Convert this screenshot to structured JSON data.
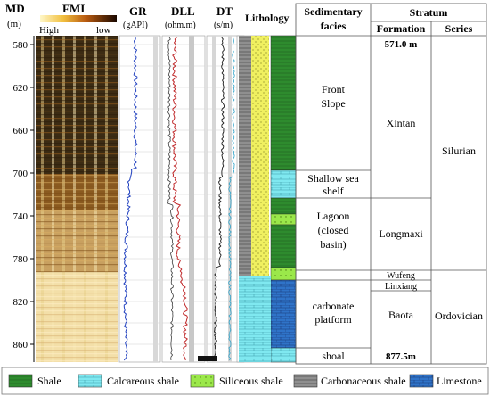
{
  "header": {
    "md": "MD",
    "md_unit": "(m)",
    "fmi": "FMI",
    "fmi_high": "High",
    "fmi_low": "low",
    "gr": "GR",
    "gr_unit": "(gAPI)",
    "dll": "DLL",
    "dll_unit": "(ohm.m)",
    "dt": "DT",
    "dt_unit": "(s/m)",
    "lithology": "Lithology",
    "facies_line1": "Sedimentary",
    "facies_line2": "facies",
    "stratum": "Stratum",
    "formation": "Formation",
    "series": "Series"
  },
  "depth_ticks": [
    "580",
    "620",
    "660",
    "700",
    "740",
    "780",
    "820",
    "860"
  ],
  "facies": {
    "front_slope_1": "Front",
    "front_slope_2": "Slope",
    "shelf_1": "Shallow sea",
    "shelf_2": "shelf",
    "lagoon_1": "Lagoon",
    "lagoon_2": "(closed",
    "lagoon_3": "basin)",
    "platform_1": "carbonate",
    "platform_2": "platform",
    "shoal": "shoal"
  },
  "formations": {
    "top_depth": "571.0 m",
    "xintan": "Xintan",
    "longmaxi": "Longmaxi",
    "wufeng": "Wufeng",
    "linxiang": "Linxiang",
    "baota": "Baota",
    "bottom_depth": "877.5m"
  },
  "series": {
    "silurian": "Silurian",
    "ordovician": "Ordovician"
  },
  "legend": [
    {
      "label": "Shale",
      "color": "#2e8b2e"
    },
    {
      "label": "Calcareous shale",
      "color": "#7fe8f0"
    },
    {
      "label": "Siliceous shale",
      "color": "#9be84a"
    },
    {
      "label": "Carbonaceous shale",
      "color": "#8f8f8f"
    },
    {
      "label": "Limestone",
      "color": "#2f73c8"
    }
  ]
}
